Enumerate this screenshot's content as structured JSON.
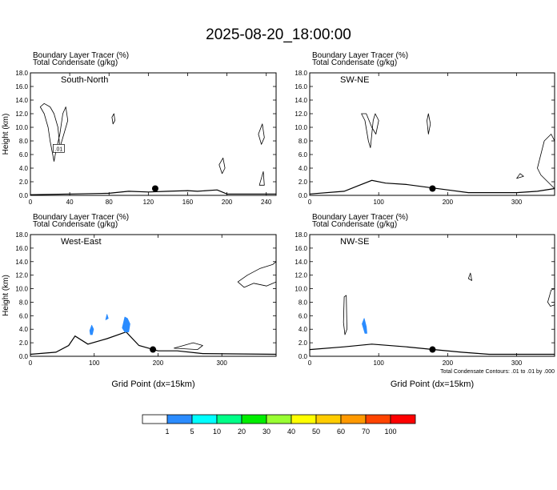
{
  "title": "2025-08-20_18:00:00",
  "chart_data": [
    {
      "type": "contour-cross-section",
      "panel_label": "South-North",
      "header_line1": "Boundary Layer Tracer   (%)",
      "header_line2": "Total Condensate   (g/kg)",
      "ylabel": "Height (km)",
      "xlabel": "",
      "xlim": [
        0,
        250
      ],
      "ylim": [
        0,
        18
      ],
      "xticks": [
        "0",
        "40",
        "80",
        "120",
        "160",
        "200",
        "240"
      ],
      "xtick_values": [
        0,
        40,
        80,
        120,
        160,
        200,
        240
      ],
      "yticks": [
        "0.0",
        "2.0",
        "4.0",
        "6.0",
        "8.0",
        "10.0",
        "12.0",
        "14.0",
        "16.0",
        "18.0"
      ],
      "contour_label": ".01",
      "marker_x": 127,
      "marker_y": 1.0,
      "terrain": [
        [
          0,
          0.1
        ],
        [
          40,
          0.2
        ],
        [
          80,
          0.3
        ],
        [
          100,
          0.6
        ],
        [
          120,
          0.5
        ],
        [
          140,
          0.6
        ],
        [
          160,
          0.7
        ],
        [
          170,
          0.6
        ],
        [
          190,
          0.8
        ],
        [
          200,
          0.2
        ],
        [
          250,
          0.2
        ]
      ]
    },
    {
      "type": "contour-cross-section",
      "panel_label": "SW-NE",
      "header_line1": "Boundary Layer Tracer   (%)",
      "header_line2": "Total Condensate   (g/kg)",
      "ylabel": "",
      "xlabel": "",
      "xlim": [
        0,
        355
      ],
      "ylim": [
        0,
        18
      ],
      "xticks": [
        "0",
        "100",
        "200",
        "300"
      ],
      "xtick_values": [
        0,
        100,
        200,
        300
      ],
      "yticks": [
        "0.0",
        "2.0",
        "4.0",
        "6.0",
        "8.0",
        "10.0",
        "12.0",
        "14.0",
        "16.0",
        "18.0"
      ],
      "marker_x": 178,
      "marker_y": 1.0,
      "terrain": [
        [
          0,
          0.2
        ],
        [
          50,
          0.6
        ],
        [
          70,
          1.4
        ],
        [
          90,
          2.2
        ],
        [
          110,
          1.8
        ],
        [
          140,
          1.6
        ],
        [
          170,
          1.2
        ],
        [
          200,
          0.8
        ],
        [
          230,
          0.4
        ],
        [
          300,
          0.4
        ],
        [
          330,
          0.6
        ],
        [
          355,
          1.0
        ]
      ]
    },
    {
      "type": "contour-cross-section",
      "panel_label": "West-East",
      "header_line1": "Boundary Layer Tracer   (%)",
      "header_line2": "Total Condensate   (g/kg)",
      "ylabel": "Height (km)",
      "xlabel": "Grid Point (dx=15km)",
      "xlim": [
        0,
        385
      ],
      "ylim": [
        0,
        18
      ],
      "xticks": [
        "0",
        "100",
        "200",
        "300"
      ],
      "xtick_values": [
        0,
        100,
        200,
        300
      ],
      "yticks": [
        "0.0",
        "2.0",
        "4.0",
        "6.0",
        "8.0",
        "10.0",
        "12.0",
        "14.0",
        "16.0",
        "18.0"
      ],
      "marker_x": 192,
      "marker_y": 1.0,
      "terrain": [
        [
          0,
          0.3
        ],
        [
          40,
          0.6
        ],
        [
          60,
          1.6
        ],
        [
          70,
          3.0
        ],
        [
          90,
          1.8
        ],
        [
          120,
          2.6
        ],
        [
          150,
          3.6
        ],
        [
          170,
          1.6
        ],
        [
          200,
          0.8
        ],
        [
          230,
          0.8
        ],
        [
          270,
          0.4
        ],
        [
          385,
          0.3
        ]
      ]
    },
    {
      "type": "contour-cross-section",
      "panel_label": "NW-SE",
      "header_line1": "Boundary Layer Tracer   (%)",
      "header_line2": "Total Condensate   (g/kg)",
      "ylabel": "",
      "xlabel": "Grid Point (dx=15km)",
      "xlim": [
        0,
        355
      ],
      "ylim": [
        0,
        18
      ],
      "xticks": [
        "0",
        "100",
        "200",
        "300"
      ],
      "xtick_values": [
        0,
        100,
        200,
        300
      ],
      "yticks": [
        "0.0",
        "2.0",
        "4.0",
        "6.0",
        "8.0",
        "10.0",
        "12.0",
        "14.0",
        "16.0",
        "18.0"
      ],
      "marker_x": 178,
      "marker_y": 1.0,
      "footnote": "Total Condensate Contours: .01 to .01 by .000",
      "terrain": [
        [
          0,
          1.0
        ],
        [
          50,
          1.4
        ],
        [
          90,
          1.8
        ],
        [
          140,
          1.4
        ],
        [
          180,
          1.0
        ],
        [
          220,
          0.6
        ],
        [
          260,
          0.3
        ],
        [
          300,
          0.3
        ],
        [
          355,
          0.3
        ]
      ]
    }
  ],
  "colorbar": {
    "labels": [
      "1",
      "5",
      "10",
      "20",
      "30",
      "40",
      "50",
      "60",
      "70",
      "100"
    ],
    "colors": [
      "#ffffff",
      "#2b8cff",
      "#00ffff",
      "#00ff88",
      "#00ee00",
      "#99ff33",
      "#ffff00",
      "#ffcc00",
      "#ff9900",
      "#ff4400",
      "#ff0000"
    ]
  }
}
